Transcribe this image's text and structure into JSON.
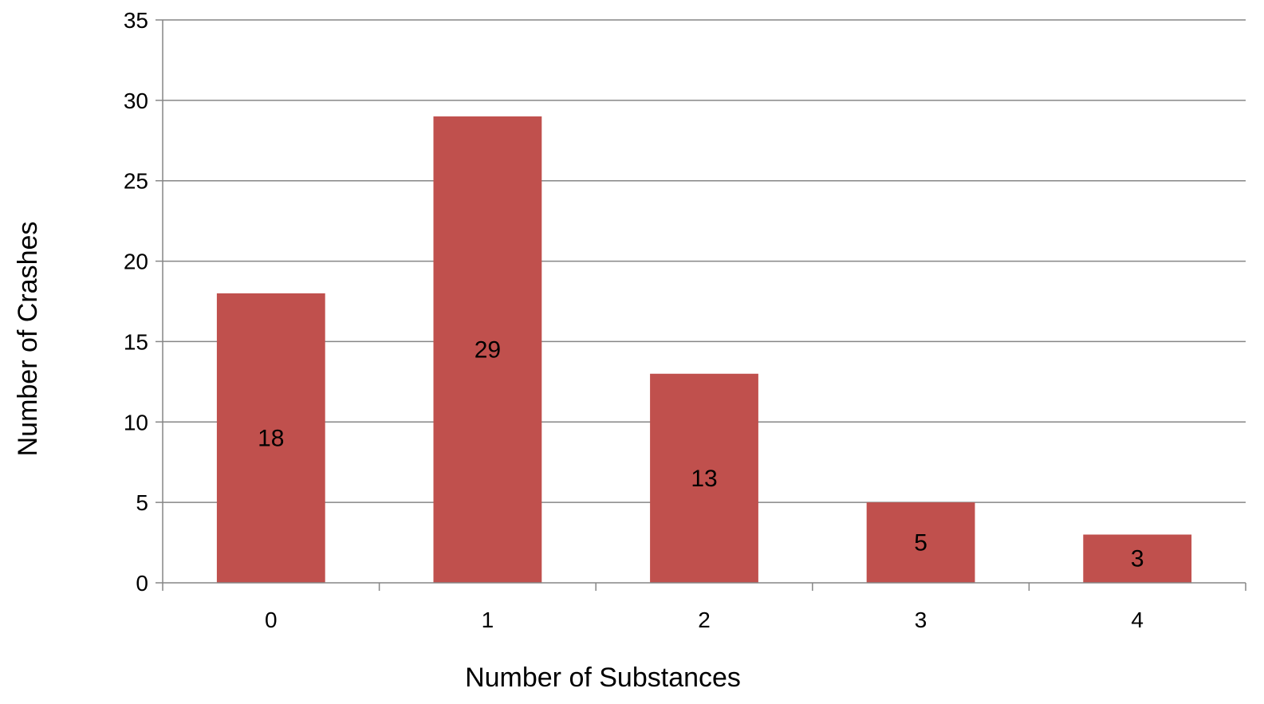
{
  "chart_data": {
    "type": "bar",
    "categories": [
      "0",
      "1",
      "2",
      "3",
      "4"
    ],
    "values": [
      18,
      29,
      13,
      5,
      3
    ],
    "data_labels": [
      "18",
      "29",
      "13",
      "5",
      "3"
    ],
    "title": "",
    "xlabel": "Number of Substances",
    "ylabel": "Number of Crashes",
    "ylim": [
      0,
      35
    ],
    "yticks": [
      0,
      5,
      10,
      15,
      20,
      25,
      30,
      35
    ],
    "ytick_labels": [
      "0",
      "5",
      "10",
      "15",
      "20",
      "25",
      "30",
      "35"
    ],
    "grid": true,
    "legend": "none",
    "colors": {
      "bar": "#c0504d",
      "grid": "#868686",
      "axis": "#868686",
      "text": "#000000"
    }
  }
}
